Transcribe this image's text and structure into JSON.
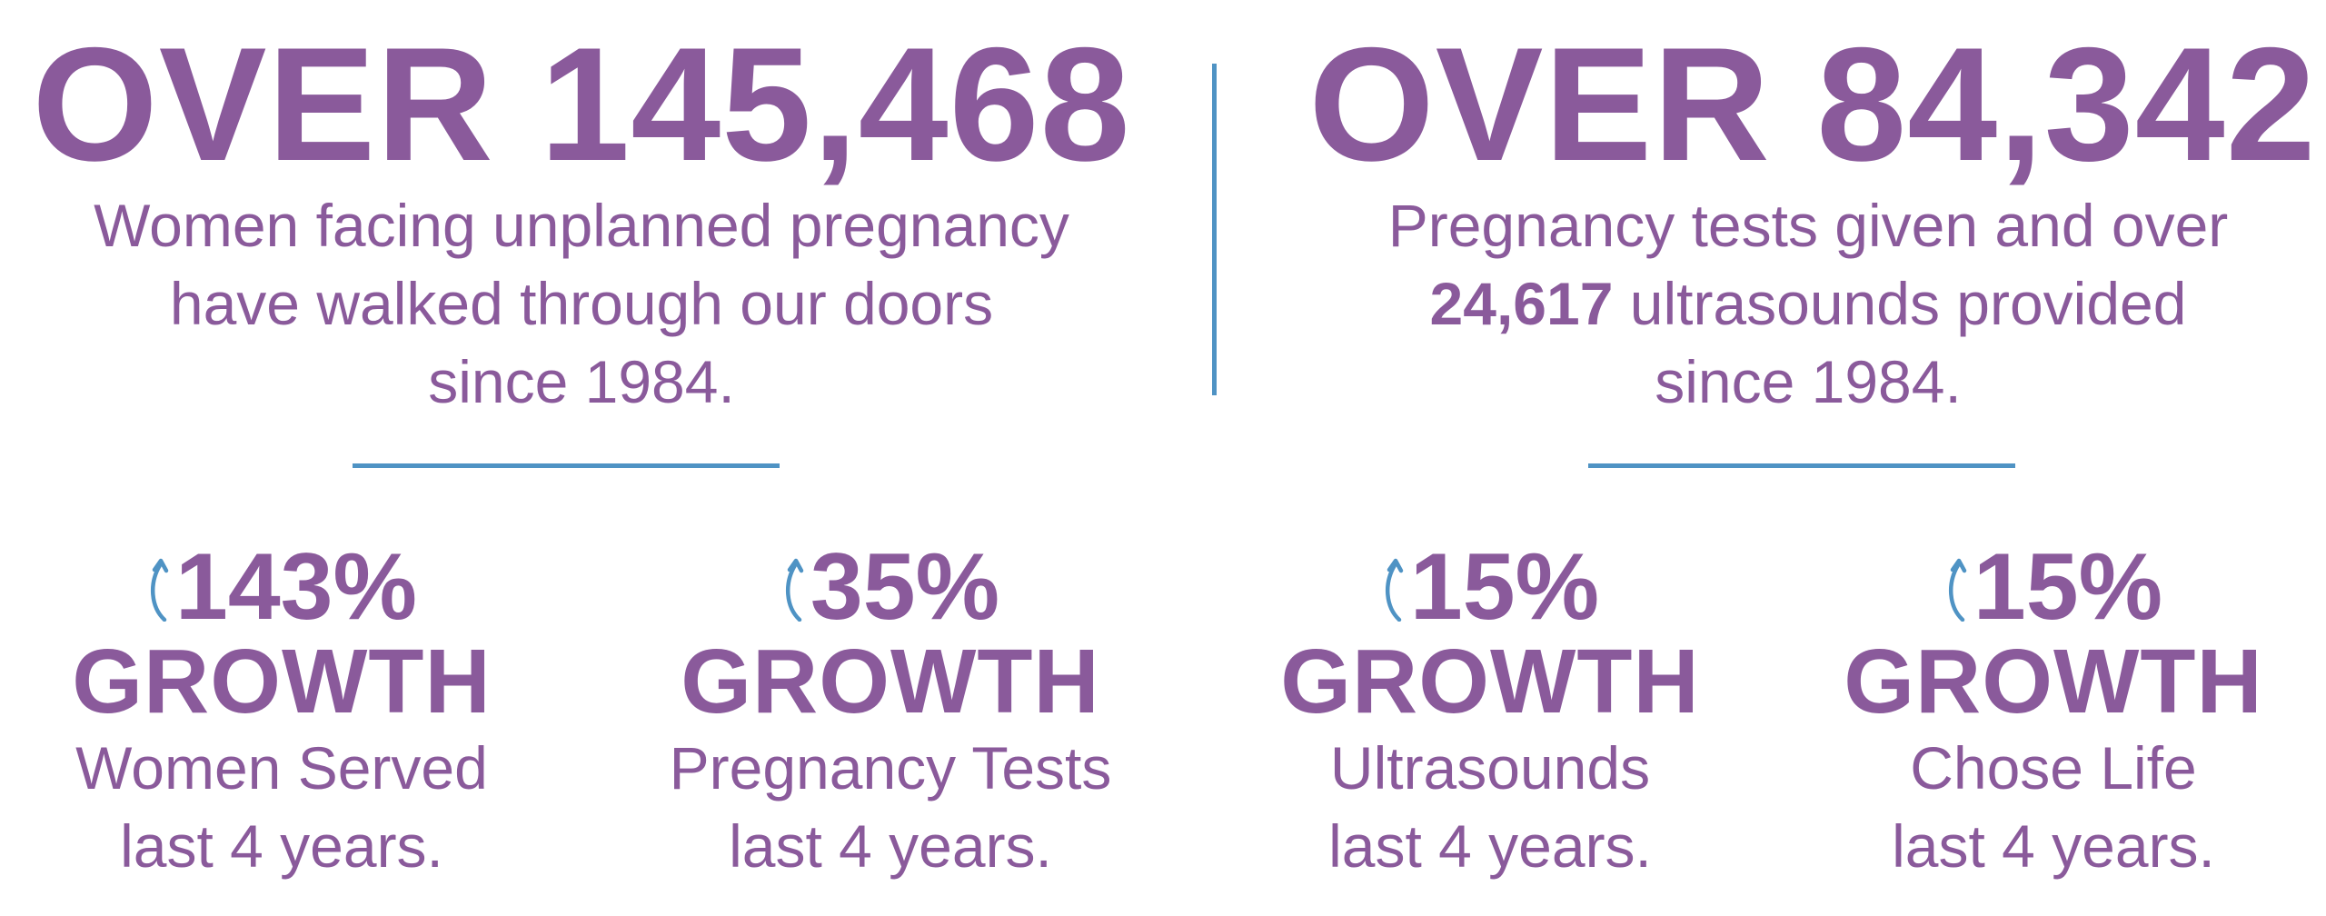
{
  "left_block": {
    "headline": "OVER 145,468",
    "lines": [
      "Women facing unplanned pregnancy",
      "have walked through our doors",
      "since 1984."
    ]
  },
  "right_block": {
    "headline": "OVER 84,342",
    "line1": "Pregnancy tests given and over",
    "line2_bold": "24,617",
    "line2_rest": " ultrasounds provided",
    "line3": "since 1984."
  },
  "stats": [
    {
      "percent": "143%",
      "growth": "GROWTH",
      "label": "Women Served",
      "period": "last 4 years."
    },
    {
      "percent": "35%",
      "growth": "GROWTH",
      "label": "Pregnancy Tests",
      "period": "last 4 years."
    },
    {
      "percent": "15%",
      "growth": "GROWTH",
      "label": "Ultrasounds",
      "period": "last 4 years."
    },
    {
      "percent": "15%",
      "growth": "GROWTH",
      "label": "Chose Life",
      "period": "last 4 years."
    }
  ],
  "icons": {
    "growth_arrow": "curved-up-arrow-icon"
  },
  "colors": {
    "text": "#8a5a9b",
    "accent": "#4f93c4",
    "background": "#ffffff"
  }
}
